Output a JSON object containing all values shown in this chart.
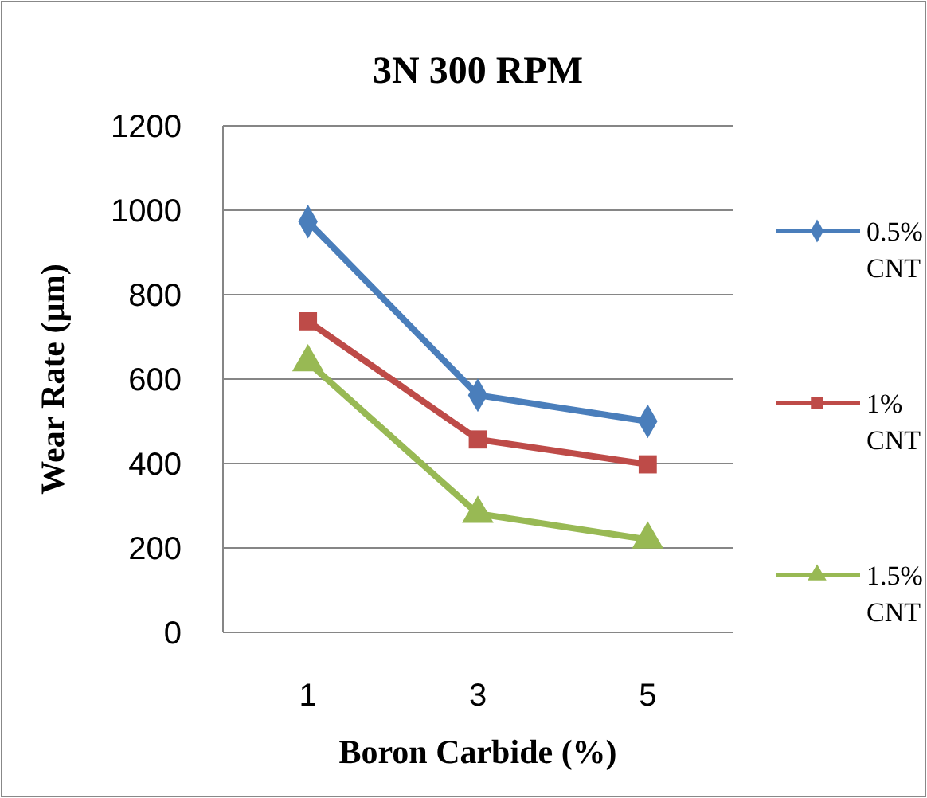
{
  "chart_data": {
    "type": "line",
    "title": "3N 300 RPM",
    "xlabel": "Boron Carbide (%)",
    "ylabel": "Wear Rate (µm)",
    "categories": [
      "1",
      "3",
      "5"
    ],
    "series": [
      {
        "name": "0.5% CNT",
        "color": "#4a7ebb",
        "marker": "diamond",
        "values": [
          973,
          562,
          500
        ]
      },
      {
        "name": "1% CNT",
        "color": "#be4b48",
        "marker": "square",
        "values": [
          737,
          457,
          398
        ]
      },
      {
        "name": "1.5% CNT",
        "color": "#98b954",
        "marker": "triangle",
        "values": [
          640,
          281,
          220
        ]
      }
    ],
    "ylim": [
      0,
      1200
    ],
    "yticks": [
      0,
      200,
      400,
      600,
      800,
      1000,
      1200
    ],
    "grid": "y",
    "legend": "right"
  }
}
